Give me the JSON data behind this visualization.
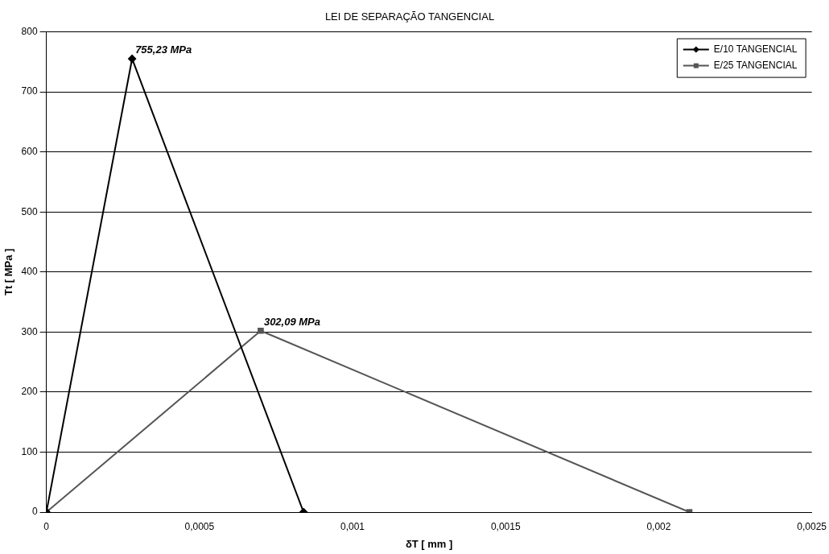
{
  "chart_data": {
    "type": "line",
    "title": "LEI DE SEPARAÇÃO TANGENCIAL",
    "xlabel": "δT [ mm ]",
    "ylabel": "Tt [ MPa ]",
    "series": [
      {
        "name": "E/10 TANGENCIAL",
        "color": "#000000",
        "marker": "diamond",
        "x": [
          0,
          0.00028,
          0.00084
        ],
        "values": [
          0,
          755.23,
          0
        ]
      },
      {
        "name": "E/25 TANGENCIAL",
        "color": "#555555",
        "marker": "square",
        "x": [
          0,
          0.0007,
          0.0021
        ],
        "values": [
          0,
          302.09,
          0
        ]
      }
    ],
    "xlim": [
      0,
      0.0025
    ],
    "xticks": [
      0,
      {
        "value": 0.0005,
        "label": "0,0005"
      },
      {
        "value": 0.001,
        "label": "0,001"
      },
      {
        "value": 0.0015,
        "label": "0,0015"
      },
      {
        "value": 0.002,
        "label": "0,002"
      },
      {
        "value": 0.0025,
        "label": "0,0025"
      }
    ],
    "ylim": [
      0,
      800
    ],
    "yticks": [
      0,
      100,
      200,
      300,
      400,
      500,
      600,
      700,
      800
    ],
    "grid": "y",
    "legend": "top right",
    "annotations": [
      {
        "text": "755,23 MPa",
        "x": 0.00028,
        "y": 755.23
      },
      {
        "text": "302,09 MPa",
        "x": 0.0007,
        "y": 302.09
      }
    ]
  }
}
